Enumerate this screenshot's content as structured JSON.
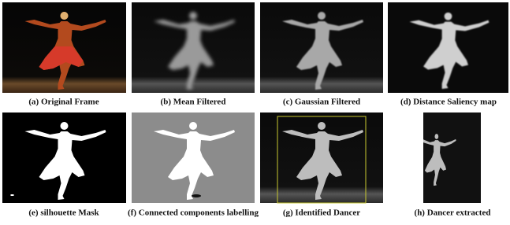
{
  "figure": {
    "panels": [
      {
        "caption": "(a) Original Frame"
      },
      {
        "caption": "(b) Mean Filtered"
      },
      {
        "caption": "(c) Gaussian Filtered"
      },
      {
        "caption": "(d) Distance Saliency map"
      },
      {
        "caption": "(e) silhouette Mask"
      },
      {
        "caption": "(f) Connected components labelling"
      },
      {
        "caption": "(g) Identified Dancer"
      },
      {
        "caption": "(h) Dancer extracted"
      }
    ]
  }
}
